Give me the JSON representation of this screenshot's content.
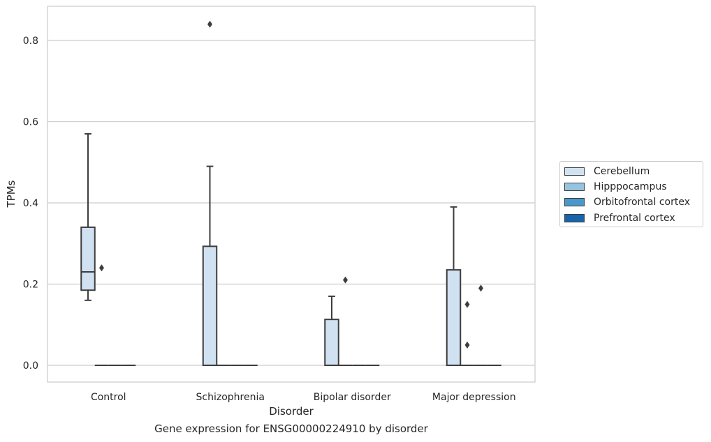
{
  "chart_data": {
    "type": "box",
    "caption": "Gene expression for ENSG00000224910 by disorder",
    "xlabel": "Disorder",
    "ylabel": "TPMs",
    "ylim": [
      -0.04,
      0.885
    ],
    "yticks": [
      "0.0",
      "0.2",
      "0.4",
      "0.6",
      "0.8"
    ],
    "ytick_values": [
      0.0,
      0.2,
      0.4,
      0.6,
      0.8
    ],
    "categories": [
      "Control",
      "Schizophrenia",
      "Bipolar disorder",
      "Major depression"
    ],
    "grid": true,
    "legend_position": "right",
    "series": [
      {
        "name": "Cerebellum",
        "color": "#d0e1f2",
        "boxes": [
          {
            "min": 0.16,
            "q1": 0.185,
            "median": 0.23,
            "q3": 0.34,
            "max": 0.57,
            "outliers": []
          },
          {
            "min": 0.0,
            "q1": 0.0,
            "median": 0.0,
            "q3": 0.293,
            "max": 0.49,
            "outliers": [
              0.84
            ]
          },
          {
            "min": 0.0,
            "q1": 0.0,
            "median": 0.0,
            "q3": 0.113,
            "max": 0.17,
            "outliers": []
          },
          {
            "min": 0.0,
            "q1": 0.0,
            "median": 0.0,
            "q3": 0.235,
            "max": 0.39,
            "outliers": []
          }
        ]
      },
      {
        "name": "Hipppocampus",
        "color": "#94c4df",
        "boxes": [
          {
            "min": 0.0,
            "q1": 0.0,
            "median": 0.0,
            "q3": 0.0,
            "max": 0.0,
            "outliers": [
              0.24
            ]
          },
          {
            "min": 0.0,
            "q1": 0.0,
            "median": 0.0,
            "q3": 0.0,
            "max": 0.0,
            "outliers": []
          },
          {
            "min": 0.0,
            "q1": 0.0,
            "median": 0.0,
            "q3": 0.0,
            "max": 0.0,
            "outliers": [
              0.21
            ]
          },
          {
            "min": 0.0,
            "q1": 0.0,
            "median": 0.0,
            "q3": 0.0,
            "max": 0.0,
            "outliers": [
              0.15,
              0.05
            ]
          }
        ]
      },
      {
        "name": "Orbitofrontal cortex",
        "color": "#4a98c9",
        "boxes": [
          {
            "min": 0.0,
            "q1": 0.0,
            "median": 0.0,
            "q3": 0.0,
            "max": 0.0,
            "outliers": []
          },
          {
            "min": 0.0,
            "q1": 0.0,
            "median": 0.0,
            "q3": 0.0,
            "max": 0.0,
            "outliers": []
          },
          {
            "min": 0.0,
            "q1": 0.0,
            "median": 0.0,
            "q3": 0.0,
            "max": 0.0,
            "outliers": []
          },
          {
            "min": 0.0,
            "q1": 0.0,
            "median": 0.0,
            "q3": 0.0,
            "max": 0.0,
            "outliers": [
              0.19
            ]
          }
        ]
      },
      {
        "name": "Prefrontal cortex",
        "color": "#1764ab",
        "boxes": [
          {
            "min": 0.0,
            "q1": 0.0,
            "median": 0.0,
            "q3": 0.0,
            "max": 0.0,
            "outliers": []
          },
          {
            "min": 0.0,
            "q1": 0.0,
            "median": 0.0,
            "q3": 0.0,
            "max": 0.0,
            "outliers": []
          },
          {
            "min": 0.0,
            "q1": 0.0,
            "median": 0.0,
            "q3": 0.0,
            "max": 0.0,
            "outliers": []
          },
          {
            "min": 0.0,
            "q1": 0.0,
            "median": 0.0,
            "q3": 0.0,
            "max": 0.0,
            "outliers": []
          }
        ]
      }
    ]
  }
}
